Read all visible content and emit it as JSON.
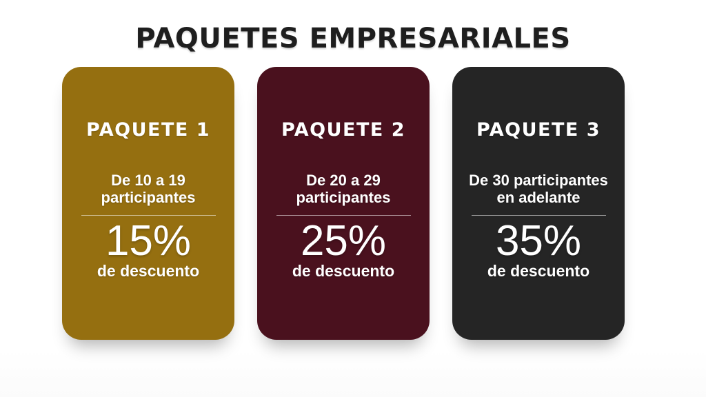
{
  "page": {
    "title": "PAQUETES EMPRESARIALES"
  },
  "colors": {
    "background": "#ffffff",
    "title_text": "#1e1e1e",
    "card_text": "#ffffff",
    "divider": "rgba(255,255,255,0.55)",
    "card1_gold": "#956F10",
    "card2_maroon": "#4A111E",
    "card3_charcoal": "#252525"
  },
  "cards": [
    {
      "name": "PAQUETE 1",
      "audience_line1": "De 10 a 19",
      "audience_line2": "participantes",
      "discount": "15%",
      "discount_label": "de descuento",
      "color": "#956F10"
    },
    {
      "name": "PAQUETE 2",
      "audience_line1": "De 20 a 29",
      "audience_line2": "participantes",
      "discount": "25%",
      "discount_label": "de descuento",
      "color": "#4A111E"
    },
    {
      "name": "PAQUETE 3",
      "audience_line1": "De 30 participantes",
      "audience_line2": "en adelante",
      "discount": "35%",
      "discount_label": "de descuento",
      "color": "#252525"
    }
  ]
}
